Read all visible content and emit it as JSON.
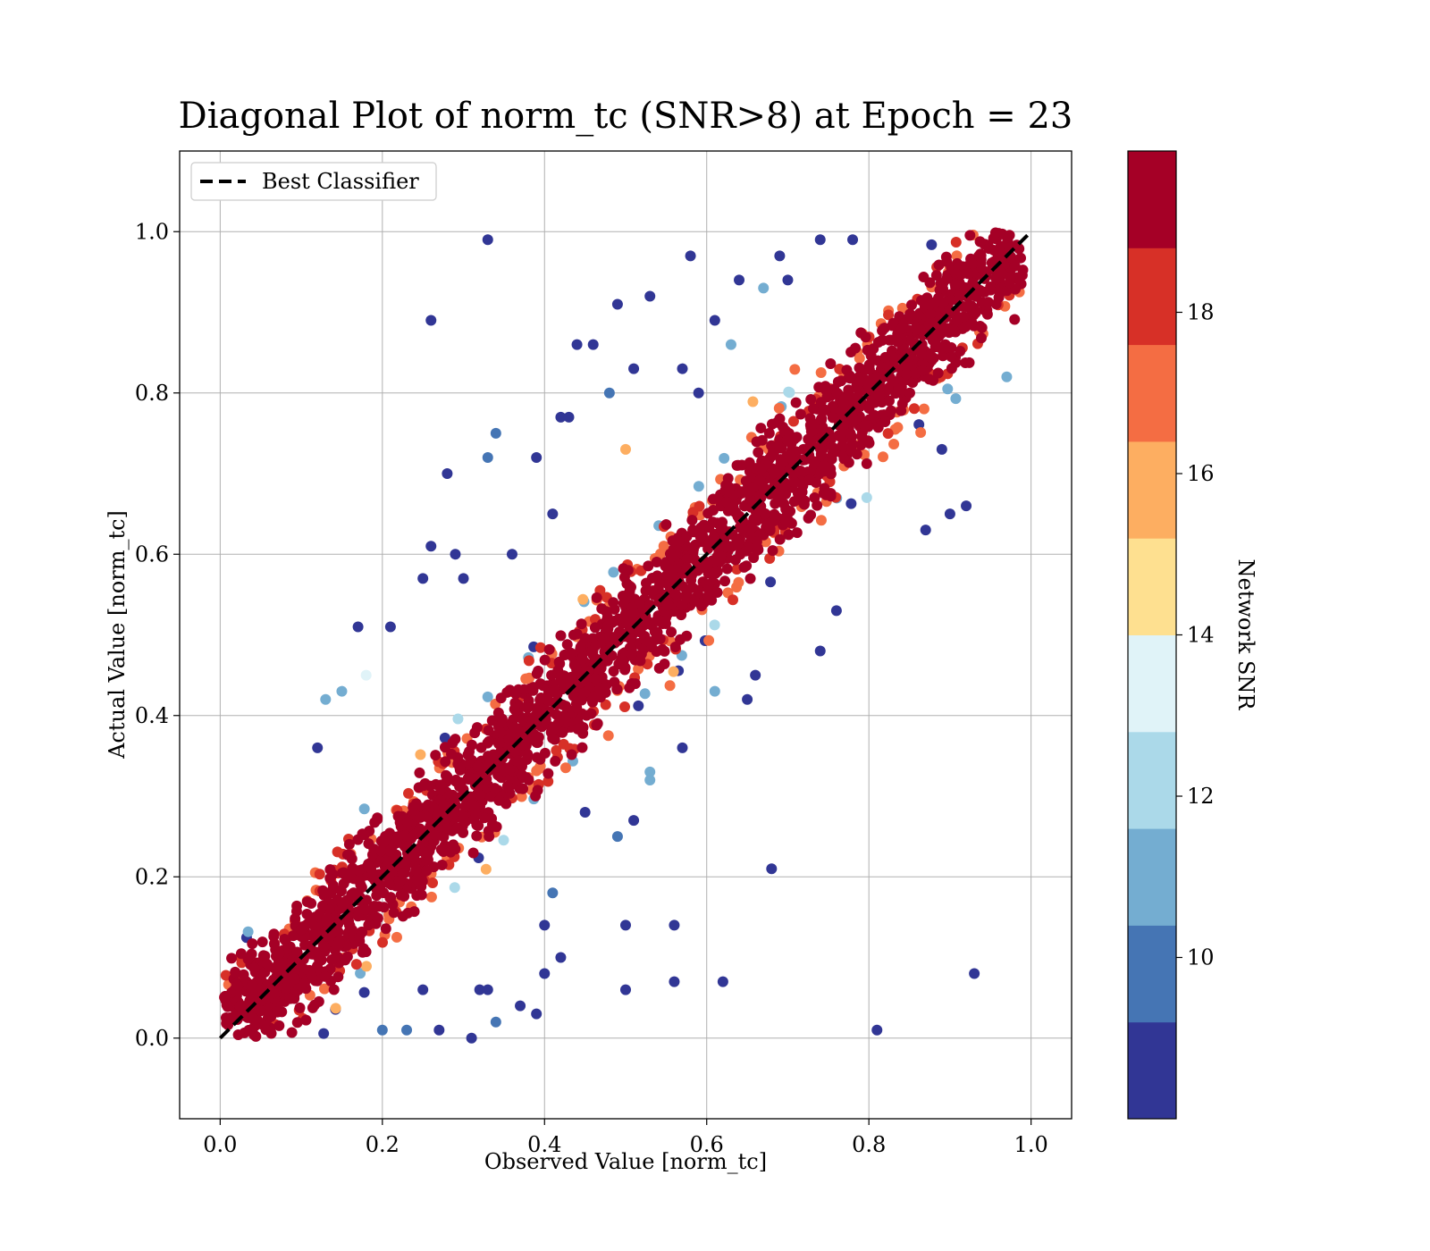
{
  "chart_data": {
    "type": "scatter",
    "title": "Diagonal Plot of norm_tc (SNR>8) at Epoch = 23",
    "xlabel": "Observed Value [norm_tc]",
    "ylabel": "Actual Value [norm_tc]",
    "xlim": [
      -0.05,
      1.05
    ],
    "ylim": [
      -0.1,
      1.1
    ],
    "xticks": [
      "0.0",
      "0.2",
      "0.4",
      "0.6",
      "0.8",
      "1.0"
    ],
    "yticks": [
      "0.0",
      "0.2",
      "0.4",
      "0.6",
      "0.8",
      "1.0"
    ],
    "grid": true,
    "legend": {
      "position": "top-left",
      "entries": [
        "Best Classifier"
      ]
    },
    "reference_line": {
      "name": "Best Classifier",
      "x": [
        0.0,
        1.0
      ],
      "y": [
        0.0,
        1.0
      ],
      "style": "dashed",
      "color": "#000000"
    },
    "colorbar": {
      "label": "Network SNR",
      "ticks": [
        "10",
        "12",
        "14",
        "16",
        "18"
      ],
      "range": [
        8,
        20
      ],
      "colors": [
        "#313695",
        "#4575b4",
        "#74add1",
        "#abd9e9",
        "#e0f3f8",
        "#fee090",
        "#fdae61",
        "#f46d43",
        "#d73027",
        "#a50026"
      ]
    },
    "band": {
      "description": "dense diagonal band of points",
      "core_half_width": 0.05,
      "spread_half_width": 0.09
    },
    "outliers": [
      {
        "x": 0.33,
        "y": 0.99,
        "snr": 8.5
      },
      {
        "x": 0.26,
        "y": 0.89,
        "snr": 8.5
      },
      {
        "x": 0.49,
        "y": 0.91,
        "snr": 8.5
      },
      {
        "x": 0.53,
        "y": 0.92,
        "snr": 8.5
      },
      {
        "x": 0.58,
        "y": 0.97,
        "snr": 8.5
      },
      {
        "x": 0.44,
        "y": 0.86,
        "snr": 8.5
      },
      {
        "x": 0.46,
        "y": 0.86,
        "snr": 8.5
      },
      {
        "x": 0.51,
        "y": 0.83,
        "snr": 8.5
      },
      {
        "x": 0.48,
        "y": 0.8,
        "snr": 9.5
      },
      {
        "x": 0.42,
        "y": 0.77,
        "snr": 8.5
      },
      {
        "x": 0.43,
        "y": 0.77,
        "snr": 8.5
      },
      {
        "x": 0.34,
        "y": 0.75,
        "snr": 9.5
      },
      {
        "x": 0.33,
        "y": 0.72,
        "snr": 9.5
      },
      {
        "x": 0.28,
        "y": 0.7,
        "snr": 8.5
      },
      {
        "x": 0.39,
        "y": 0.72,
        "snr": 8.5
      },
      {
        "x": 0.36,
        "y": 0.6,
        "snr": 8.5
      },
      {
        "x": 0.26,
        "y": 0.61,
        "snr": 8.5
      },
      {
        "x": 0.29,
        "y": 0.6,
        "snr": 8.5
      },
      {
        "x": 0.25,
        "y": 0.57,
        "snr": 8.5
      },
      {
        "x": 0.3,
        "y": 0.57,
        "snr": 8.5
      },
      {
        "x": 0.17,
        "y": 0.51,
        "snr": 8.5
      },
      {
        "x": 0.21,
        "y": 0.51,
        "snr": 8.5
      },
      {
        "x": 0.18,
        "y": 0.45,
        "snr": 13.5
      },
      {
        "x": 0.13,
        "y": 0.42,
        "snr": 10.5
      },
      {
        "x": 0.15,
        "y": 0.43,
        "snr": 10.5
      },
      {
        "x": 0.12,
        "y": 0.36,
        "snr": 8.5
      },
      {
        "x": 0.41,
        "y": 0.65,
        "snr": 8.5
      },
      {
        "x": 0.5,
        "y": 0.73,
        "snr": 15.5
      },
      {
        "x": 0.64,
        "y": 0.94,
        "snr": 8.5
      },
      {
        "x": 0.61,
        "y": 0.89,
        "snr": 8.5
      },
      {
        "x": 0.69,
        "y": 0.97,
        "snr": 8.5
      },
      {
        "x": 0.74,
        "y": 0.99,
        "snr": 8.5
      },
      {
        "x": 0.78,
        "y": 0.99,
        "snr": 8.5
      },
      {
        "x": 0.7,
        "y": 0.94,
        "snr": 8.5
      },
      {
        "x": 0.63,
        "y": 0.86,
        "snr": 10.5
      },
      {
        "x": 0.67,
        "y": 0.93,
        "snr": 11.5
      },
      {
        "x": 0.57,
        "y": 0.83,
        "snr": 8.5
      },
      {
        "x": 0.59,
        "y": 0.8,
        "snr": 8.5
      },
      {
        "x": 0.81,
        "y": 0.01,
        "snr": 8.5
      },
      {
        "x": 0.93,
        "y": 0.08,
        "snr": 8.5
      },
      {
        "x": 0.68,
        "y": 0.21,
        "snr": 8.5
      },
      {
        "x": 0.62,
        "y": 0.07,
        "snr": 8.5
      },
      {
        "x": 0.56,
        "y": 0.07,
        "snr": 8.5
      },
      {
        "x": 0.5,
        "y": 0.06,
        "snr": 8.5
      },
      {
        "x": 0.56,
        "y": 0.14,
        "snr": 8.5
      },
      {
        "x": 0.5,
        "y": 0.14,
        "snr": 8.5
      },
      {
        "x": 0.42,
        "y": 0.1,
        "snr": 8.5
      },
      {
        "x": 0.4,
        "y": 0.14,
        "snr": 8.5
      },
      {
        "x": 0.41,
        "y": 0.18,
        "snr": 9.5
      },
      {
        "x": 0.4,
        "y": 0.08,
        "snr": 8.5
      },
      {
        "x": 0.39,
        "y": 0.03,
        "snr": 8.5
      },
      {
        "x": 0.37,
        "y": 0.04,
        "snr": 8.5
      },
      {
        "x": 0.32,
        "y": 0.06,
        "snr": 8.5
      },
      {
        "x": 0.33,
        "y": 0.06,
        "snr": 8.5
      },
      {
        "x": 0.34,
        "y": 0.02,
        "snr": 9.5
      },
      {
        "x": 0.31,
        "y": 0.0,
        "snr": 8.5
      },
      {
        "x": 0.27,
        "y": 0.01,
        "snr": 8.5
      },
      {
        "x": 0.25,
        "y": 0.06,
        "snr": 8.5
      },
      {
        "x": 0.23,
        "y": 0.01,
        "snr": 9.5
      },
      {
        "x": 0.2,
        "y": 0.01,
        "snr": 9.5
      },
      {
        "x": 0.9,
        "y": 0.65,
        "snr": 8.5
      },
      {
        "x": 0.92,
        "y": 0.66,
        "snr": 8.5
      },
      {
        "x": 0.87,
        "y": 0.63,
        "snr": 8.5
      },
      {
        "x": 0.76,
        "y": 0.53,
        "snr": 8.5
      },
      {
        "x": 0.74,
        "y": 0.48,
        "snr": 8.5
      },
      {
        "x": 0.66,
        "y": 0.45,
        "snr": 8.5
      },
      {
        "x": 0.65,
        "y": 0.42,
        "snr": 8.5
      },
      {
        "x": 0.61,
        "y": 0.43,
        "snr": 11.5
      },
      {
        "x": 0.57,
        "y": 0.36,
        "snr": 8.5
      },
      {
        "x": 0.53,
        "y": 0.33,
        "snr": 11.5
      },
      {
        "x": 0.53,
        "y": 0.32,
        "snr": 10.5
      },
      {
        "x": 0.49,
        "y": 0.25,
        "snr": 9.5
      },
      {
        "x": 0.51,
        "y": 0.27,
        "snr": 8.5
      },
      {
        "x": 0.45,
        "y": 0.28,
        "snr": 8.5
      },
      {
        "x": 0.97,
        "y": 0.82,
        "snr": 10.5
      },
      {
        "x": 0.89,
        "y": 0.73,
        "snr": 8.5
      }
    ]
  }
}
